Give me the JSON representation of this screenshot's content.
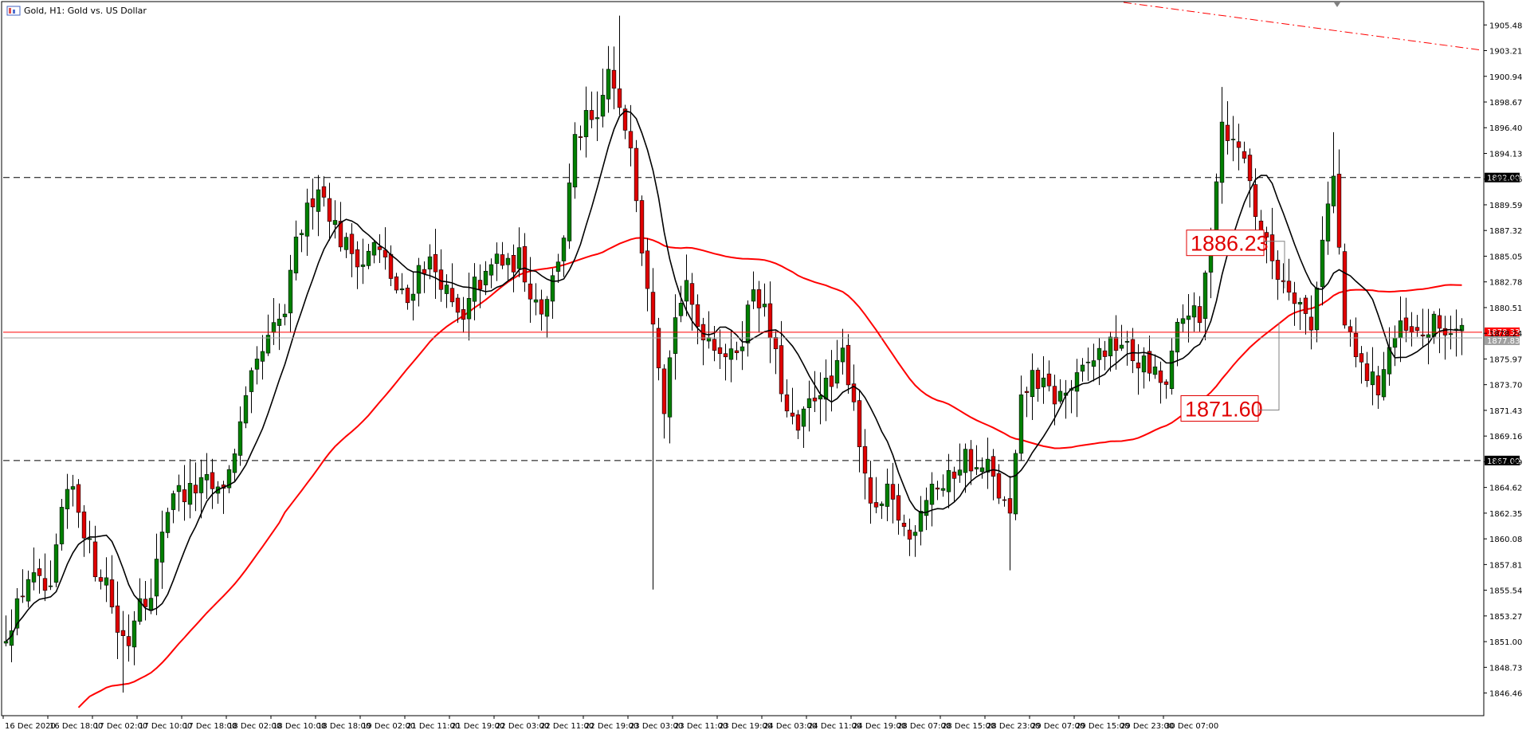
{
  "window": {
    "title": "Gold, H1:  Gold vs. US Dollar",
    "icon": "mt5-chart-icon"
  },
  "colors": {
    "background": "#ffffff",
    "bull_body": "#008000",
    "bear_body": "#e00000",
    "wick": "#000000",
    "ma_fast": "#000000",
    "ma_slow": "#ff0000",
    "support_resistance": "#000000",
    "bid_line": "#ff0000",
    "ask_line": "#a0a0a0",
    "price_tag_bg": "#000000",
    "callout": "#e00000",
    "trendline": "#ff0000"
  },
  "price_labels": [
    "1905.48",
    "1903.21",
    "1900.94",
    "1898.67",
    "1896.40",
    "1894.13",
    "1891.86",
    "1889.59",
    "1887.32",
    "1885.05",
    "1882.78",
    "1880.51",
    "1878.24",
    "1875.97",
    "1873.70",
    "1871.43",
    "1869.16",
    "1866.89",
    "1864.62",
    "1862.35",
    "1860.08",
    "1857.81",
    "1855.54",
    "1853.27",
    "1851.00",
    "1848.73",
    "1846.46"
  ],
  "time_labels": [
    "16 Dec 2020",
    "16 Dec 18:00",
    "17 Dec 02:00",
    "17 Dec 10:00",
    "17 Dec 18:00",
    "18 Dec 02:00",
    "18 Dec 10:00",
    "18 Dec 18:00",
    "19 Dec 02:00",
    "21 Dec 11:00",
    "21 Dec 19:00",
    "22 Dec 03:00",
    "22 Dec 11:00",
    "22 Dec 19:00",
    "23 Dec 03:00",
    "23 Dec 11:00",
    "23 Dec 19:00",
    "24 Dec 03:00",
    "24 Dec 11:00",
    "24 Dec 19:00",
    "28 Dec 07:00",
    "28 Dec 15:00",
    "28 Dec 23:00",
    "29 Dec 07:00",
    "29 Dec 15:00",
    "29 Dec 23:00",
    "30 Dec 07:00"
  ],
  "levels": [
    {
      "price": 1892.0,
      "label": "1892.00",
      "style": "dashed"
    },
    {
      "price": 1867.0,
      "label": "1867.00",
      "style": "dashed"
    }
  ],
  "current_price": {
    "bid": 1878.33,
    "bid_label": "1878.33",
    "ask": 1877.83,
    "ask_label": "1877.83"
  },
  "callouts": [
    {
      "text": "1886.23",
      "price": 1886.23
    },
    {
      "text": "1871.60",
      "price": 1871.6
    }
  ],
  "chart_data": {
    "type": "candlestick",
    "symbol": "Gold",
    "timeframe": "H1",
    "ylim": [
      1844.6,
      1907.4
    ],
    "bars": 262,
    "anchors": {
      "close": [
        [
          0,
          1851.5
        ],
        [
          4,
          1855.5
        ],
        [
          8,
          1856.0
        ],
        [
          12,
          1860.0
        ],
        [
          16,
          1858.0
        ],
        [
          20,
          1852.5
        ],
        [
          24,
          1854.5
        ],
        [
          28,
          1856.0
        ],
        [
          32,
          1859.5
        ],
        [
          38,
          1863.5
        ],
        [
          44,
          1865.0
        ],
        [
          50,
          1868.0
        ],
        [
          54,
          1869.5
        ],
        [
          58,
          1872.0
        ],
        [
          62,
          1877.0
        ],
        [
          66,
          1879.0
        ],
        [
          70,
          1883.5
        ],
        [
          74,
          1889.5
        ],
        [
          76,
          1891.0
        ],
        [
          78,
          1887.0
        ],
        [
          82,
          1884.0
        ],
        [
          88,
          1884.5
        ],
        [
          92,
          1883.0
        ],
        [
          96,
          1883.5
        ],
        [
          100,
          1879.0
        ],
        [
          104,
          1883.0
        ],
        [
          108,
          1882.0
        ],
        [
          112,
          1881.0
        ],
        [
          116,
          1880.0
        ],
        [
          120,
          1884.0
        ],
        [
          124,
          1885.0
        ],
        [
          128,
          1884.0
        ],
        [
          132,
          1881.0
        ],
        [
          136,
          1881.5
        ],
        [
          140,
          1884.0
        ],
        [
          144,
          1888.0
        ],
        [
          148,
          1896.5
        ],
        [
          152,
          1897.5
        ],
        [
          156,
          1903.0
        ],
        [
          160,
          1899.0
        ],
        [
          163,
          1895.0
        ],
        [
          165,
          1886.0
        ],
        [
          167,
          1870.0
        ],
        [
          170,
          1877.0
        ],
        [
          174,
          1880.0
        ],
        [
          178,
          1878.0
        ],
        [
          182,
          1876.5
        ],
        [
          186,
          1877.0
        ],
        [
          190,
          1878.5
        ],
        [
          194,
          1880.0
        ],
        [
          198,
          1880.5
        ],
        [
          202,
          1879.5
        ],
        [
          206,
          1876.0
        ],
        [
          208,
          1870.5
        ],
        [
          212,
          1873.0
        ],
        [
          216,
          1874.5
        ],
        [
          220,
          1876.5
        ],
        [
          222,
          1872.0
        ],
        [
          224,
          1863.0
        ],
        [
          228,
          1863.0
        ],
        [
          232,
          1862.5
        ],
        [
          236,
          1860.5
        ],
        [
          240,
          1863.0
        ],
        [
          244,
          1865.0
        ],
        [
          248,
          1864.5
        ],
        [
          252,
          1866.5
        ],
        [
          256,
          1865.5
        ],
        [
          260,
          1866.0
        ]
      ],
      "note": "generated from anchors below"
    },
    "segments": [
      {
        "from": 0,
        "to": 66,
        "start": 1851.5,
        "end": 1879.0
      },
      {
        "from": 66,
        "to": 90,
        "start": 1879.0,
        "end": 1883.5
      },
      {
        "from": 90,
        "to": 140,
        "start": 1883.5,
        "end": 1883.0
      },
      {
        "from": 140,
        "to": 160,
        "start": 1883.0,
        "end": 1900.5
      },
      {
        "from": 160,
        "to": 168,
        "start": 1900.5,
        "end": 1870.0
      },
      {
        "from": 168,
        "to": 205,
        "start": 1870.0,
        "end": 1878.0
      },
      {
        "from": 205,
        "to": 222,
        "start": 1878.0,
        "end": 1866.0
      },
      {
        "from": 222,
        "to": 232,
        "start": 1866.0,
        "end": 1861.0
      },
      {
        "from": 232,
        "to": 262,
        "start": 1861.0,
        "end": 1865.0
      }
    ]
  }
}
